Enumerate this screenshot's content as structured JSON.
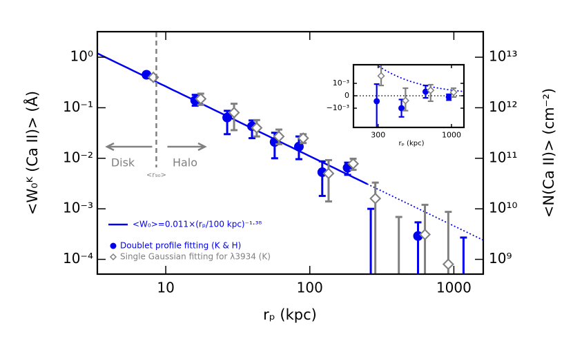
{
  "chart_data": [
    {
      "type": "scatter",
      "xlabel": "rₚ (kpc)",
      "ylabel": "<W₀ᴷ (Ca II)> (Å)",
      "y2label": "<N(Ca II)> (cm⁻²)",
      "xscale": "log",
      "yscale": "log",
      "xlim": [
        3.35,
        1600
      ],
      "ylim": [
        5.1e-05,
        3.2
      ],
      "y2lim": [
        510000000.0,
        32000000000000.0
      ],
      "xticks": [
        10,
        100,
        1000
      ],
      "yticks": [
        {
          "value": 0.0001,
          "label": "10⁻⁴"
        },
        {
          "value": 0.001,
          "label": "10⁻³"
        },
        {
          "value": 0.01,
          "label": "10⁻²"
        },
        {
          "value": 0.1,
          "label": "10⁻¹"
        },
        {
          "value": 1,
          "label": "10⁰"
        }
      ],
      "y2ticks": [
        {
          "value": 1000000000.0,
          "label": "10⁹"
        },
        {
          "value": 10000000000.0,
          "label": "10¹⁰"
        },
        {
          "value": 100000000000.0,
          "label": "10¹¹"
        },
        {
          "value": 1000000000000.0,
          "label": "10¹²"
        },
        {
          "value": 10000000000000.0,
          "label": "10¹³"
        }
      ],
      "series": [
        {
          "name": "Doublet profile fitting (K & H)",
          "color": "#0000ee",
          "marker": "circle",
          "x": [
            7.35,
            16,
            26.7,
            39.7,
            57,
            84,
            122,
            183,
            564
          ],
          "values": [
            0.45,
            0.14,
            0.064,
            0.043,
            0.021,
            0.017,
            0.0053,
            0.0065,
            0.00029
          ],
          "lower": [
            0.4,
            0.11,
            0.03,
            0.025,
            0.01,
            0.0096,
            0.0018,
            0.0047,
            5e-05
          ],
          "upper": [
            0.5,
            0.18,
            0.087,
            0.056,
            0.032,
            0.027,
            0.0087,
            0.0082,
            0.00054
          ]
        },
        {
          "name": "Single Gaussian fitting for λ3934 (K)",
          "color": "#808080",
          "marker": "diamond",
          "x": [
            8.2,
            17.5,
            29.8,
            42.8,
            61,
            90,
            135,
            200,
            285,
            630,
            915
          ],
          "values": [
            0.4,
            0.15,
            0.08,
            0.04,
            0.027,
            0.025,
            0.005,
            0.0078,
            0.0016,
            0.00031,
            8e-05
          ],
          "lower": [
            0.36,
            0.114,
            0.036,
            0.027,
            0.019,
            0.02,
            0.0014,
            0.0059,
            5e-05,
            5e-05,
            5e-05
          ],
          "upper": [
            0.44,
            0.19,
            0.12,
            0.057,
            0.037,
            0.03,
            0.0092,
            0.0098,
            0.0033,
            0.0012,
            0.00087
          ]
        }
      ],
      "limits": [
        {
          "color": "#0000ee",
          "x": [
            265,
            1167
          ],
          "upper": [
            0.001,
            0.00027
          ]
        },
        {
          "color": "#808080",
          "x": [
            415
          ],
          "upper": [
            0.00069
          ]
        }
      ],
      "fit": {
        "name": "<W₀>=0.011×(rₚ/100 kpc)⁻¹·³⁸",
        "color": "#0000ee",
        "amplitude": 0.011,
        "pivot": 100,
        "slope": -1.38,
        "solid_until": 250
      },
      "r90": {
        "x": 8.6,
        "label": "<r₉₀>"
      },
      "annotations": [
        "Disk",
        "Halo"
      ]
    },
    {
      "type": "scatter",
      "xlabel": "rₚ (kpc)",
      "xscale": "log",
      "yscale": "linear",
      "xlim": [
        200,
        1227
      ],
      "ylim": [
        -0.00255,
        0.0025
      ],
      "xticks": [
        300,
        1000
      ],
      "yticks": [
        {
          "value": -0.001,
          "label": "−10⁻³"
        },
        0,
        {
          "value": 0.001,
          "label": "10⁻³"
        }
      ],
      "refline": 0,
      "series": [
        {
          "color": "#0000ee",
          "marker": "circle",
          "x": [
            293,
            440,
            654,
            958
          ],
          "values": [
            -0.00044,
            -0.001,
            0.00033,
            -0.0001
          ],
          "lower": [
            -0.0026,
            -0.0017,
            -0.00017,
            -0.00035
          ],
          "upper": [
            0.00094,
            -0.0003,
            0.00083,
            0.00012
          ]
        },
        {
          "color": "#808080",
          "marker": "diamond",
          "x": [
            315,
            470,
            710,
            1035
          ],
          "values": [
            0.0016,
            -0.00039,
            0.00044,
            0.00028
          ],
          "lower": [
            0.00083,
            -0.0012,
            -0.00044,
            -0.0001
          ],
          "upper": [
            0.0025,
            0.00061,
            0.00089,
            0.00061
          ]
        }
      ]
    }
  ]
}
